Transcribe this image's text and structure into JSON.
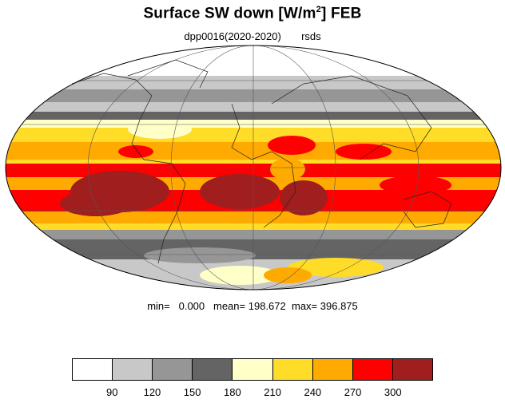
{
  "title": {
    "main": "Surface SW down [W/m",
    "sup": "2",
    "tail": "]  FEB"
  },
  "subtitle": {
    "run": "dpp0016(2020-2020)",
    "var": "rsds"
  },
  "stats": {
    "min_label": "min=",
    "min": "0.000",
    "mean_label": "mean=",
    "mean": "198.672",
    "max_label": "max=",
    "max": "396.875"
  },
  "colorbar": {
    "colors": [
      "#ffffff",
      "#c8c8c8",
      "#969696",
      "#646464",
      "#ffffc8",
      "#ffdc28",
      "#ffaa00",
      "#ff0000",
      "#a01e1e"
    ],
    "ticks": [
      "90",
      "120",
      "150",
      "180",
      "210",
      "240",
      "270",
      "300"
    ]
  }
}
